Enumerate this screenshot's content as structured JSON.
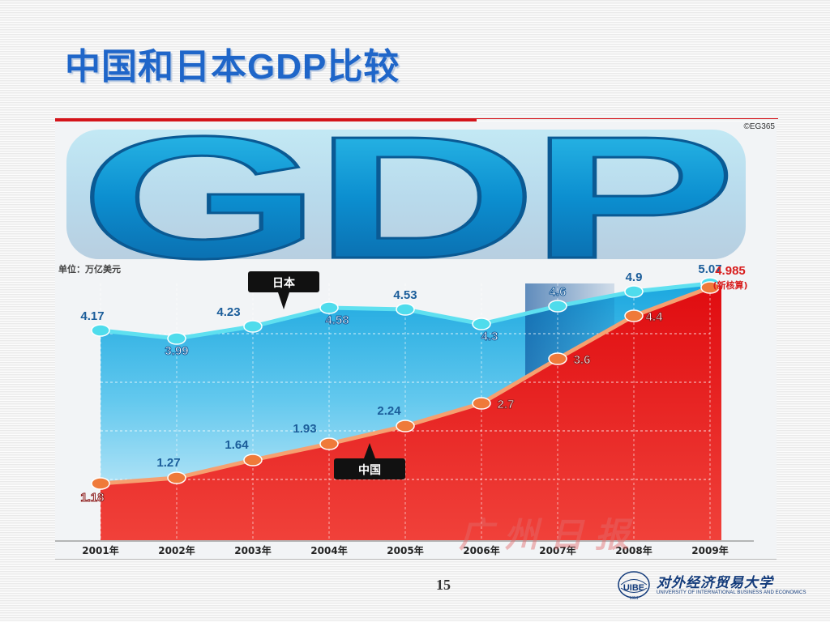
{
  "slide": {
    "title": "中国和日本GDP比较",
    "page_number": "15"
  },
  "university": {
    "name_cn": "对外经济贸易大学",
    "name_en": "UNIVERSITY OF INTERNATIONAL BUSINESS AND ECONOMICS",
    "emblem_text": "UIBE",
    "emblem_year": "1951"
  },
  "chart_data": {
    "type": "line",
    "banner": "GDP",
    "copyright": "©EG365",
    "unit_label": "单位：万亿美元",
    "watermark": "广州日报",
    "categories": [
      "2001年",
      "2002年",
      "2003年",
      "2004年",
      "2005年",
      "2006年",
      "2007年",
      "2008年",
      "2009年"
    ],
    "series": [
      {
        "name": "日本",
        "values": [
          4.17,
          3.99,
          4.23,
          4.58,
          4.53,
          4.3,
          4.6,
          4.9,
          5.07
        ],
        "labels": [
          "4.17",
          "3.99",
          "4.23",
          "4.58",
          "4.53",
          "4.3",
          "4.6",
          "4.9",
          "5.07"
        ],
        "color": "#3fd5e8"
      },
      {
        "name": "中国",
        "values": [
          1.18,
          1.27,
          1.64,
          1.93,
          2.24,
          2.7,
          3.6,
          4.4,
          4.985
        ],
        "labels": [
          "1.18",
          "1.27",
          "1.64",
          "1.93",
          "2.24",
          "2.7",
          "3.6",
          "4.4",
          "4.985"
        ],
        "color": "#ef7a3a"
      }
    ],
    "last_point_note": "(新核算)",
    "ylim": [
      0,
      5.5
    ],
    "grid": true,
    "legend": "inline-callouts"
  }
}
